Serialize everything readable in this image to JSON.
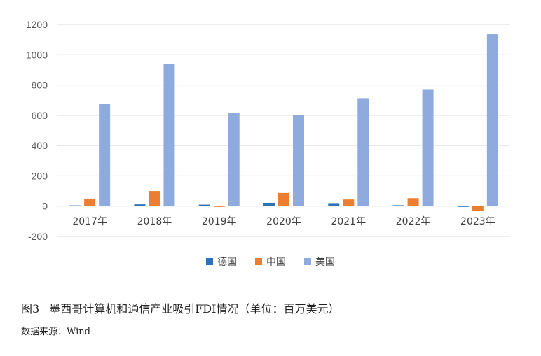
{
  "chart_data": {
    "type": "bar",
    "categories": [
      "2017年",
      "2018年",
      "2019年",
      "2020年",
      "2021年",
      "2022年",
      "2023年"
    ],
    "series": [
      {
        "name": "德国",
        "color": "#2e74b5",
        "values": [
          5,
          12,
          10,
          22,
          20,
          6,
          -5
        ]
      },
      {
        "name": "中国",
        "color": "#ed7d31",
        "values": [
          50,
          100,
          -5,
          87,
          44,
          53,
          -30
        ]
      },
      {
        "name": "美国",
        "color": "#8faadc",
        "values": [
          677,
          937,
          618,
          603,
          713,
          773,
          1135
        ]
      }
    ],
    "yticks": [
      1200,
      1000,
      800,
      600,
      400,
      200,
      0,
      -200
    ],
    "ylim": [
      -200,
      1200
    ],
    "grid": true,
    "legend_position": "bottom"
  },
  "caption": {
    "figure_label": "图3",
    "title": "墨西哥计算机和通信产业吸引FDI情况（单位：百万美元）"
  },
  "source": "数据来源：Wind"
}
